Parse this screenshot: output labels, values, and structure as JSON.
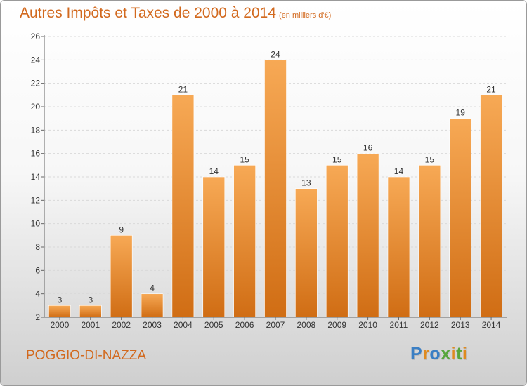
{
  "header": {
    "title": "Autres Impôts et Taxes de 2000 à 2014",
    "unit": "(en milliers d'€)"
  },
  "footer": {
    "commune": "POGGIO-DI-NAZZA",
    "brand_letters": [
      {
        "ch": "P",
        "color": "#3b7fc4"
      },
      {
        "ch": "r",
        "color": "#e08a1e"
      },
      {
        "ch": "o",
        "color": "#3b7fc4"
      },
      {
        "ch": "x",
        "color": "#58a63b"
      },
      {
        "ch": "i",
        "color": "#e08a1e"
      },
      {
        "ch": "t",
        "color": "#58a63b"
      },
      {
        "ch": "i",
        "color": "#e08a1e"
      }
    ]
  },
  "chart_data": {
    "type": "bar",
    "title": "Autres Impôts et Taxes de 2000 à 2014",
    "subtitle": "(en milliers d'€)",
    "xlabel": "",
    "ylabel": "",
    "categories": [
      "2000",
      "2001",
      "2002",
      "2003",
      "2004",
      "2005",
      "2006",
      "2007",
      "2008",
      "2009",
      "2010",
      "2011",
      "2012",
      "2013",
      "2014"
    ],
    "values": [
      3,
      3,
      9,
      4,
      21,
      14,
      15,
      24,
      13,
      15,
      16,
      14,
      15,
      19,
      21
    ],
    "ylim": [
      2,
      26
    ],
    "yticks": [
      2,
      4,
      6,
      8,
      10,
      12,
      14,
      16,
      18,
      20,
      22,
      24,
      26
    ],
    "grid": true,
    "bar_color": "#e8862a"
  }
}
